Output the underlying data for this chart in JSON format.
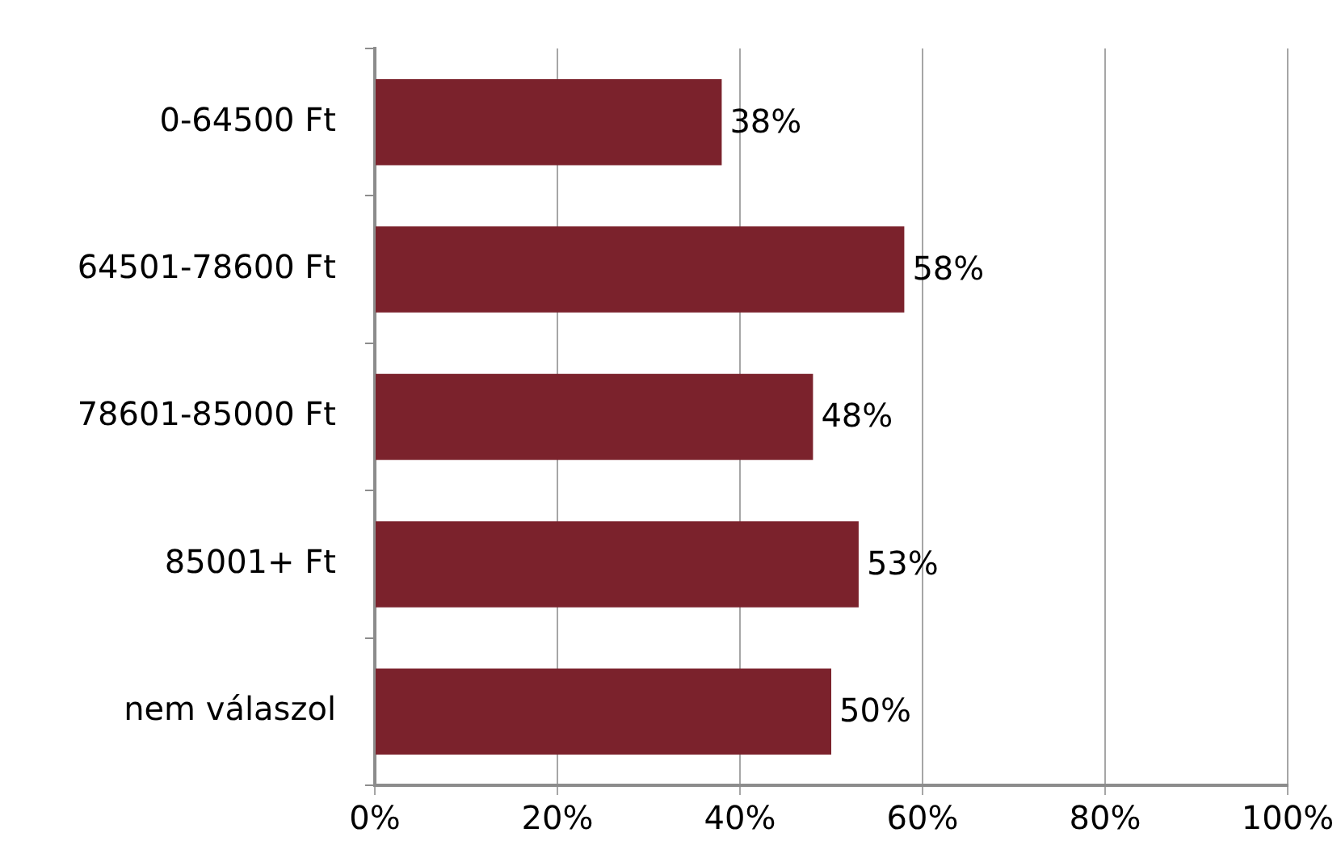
{
  "chart_data": {
    "type": "bar",
    "orientation": "horizontal",
    "categories": [
      "0-64500 Ft",
      "64501-78600 Ft",
      "78601-85000 Ft",
      "85001+ Ft",
      "nem válaszol"
    ],
    "values": [
      38,
      58,
      48,
      53,
      50
    ],
    "value_labels": [
      "38%",
      "58%",
      "48%",
      "53%",
      "50%"
    ],
    "color": "#7b222c",
    "xlim": [
      0,
      100
    ],
    "xticks": [
      {
        "value": 0,
        "label": "0%"
      },
      {
        "value": 20,
        "label": "20%"
      },
      {
        "value": 40,
        "label": "40%"
      },
      {
        "value": 60,
        "label": "60%"
      },
      {
        "value": 80,
        "label": "80%"
      },
      {
        "value": 100,
        "label": "100%"
      }
    ],
    "grid": "x"
  }
}
